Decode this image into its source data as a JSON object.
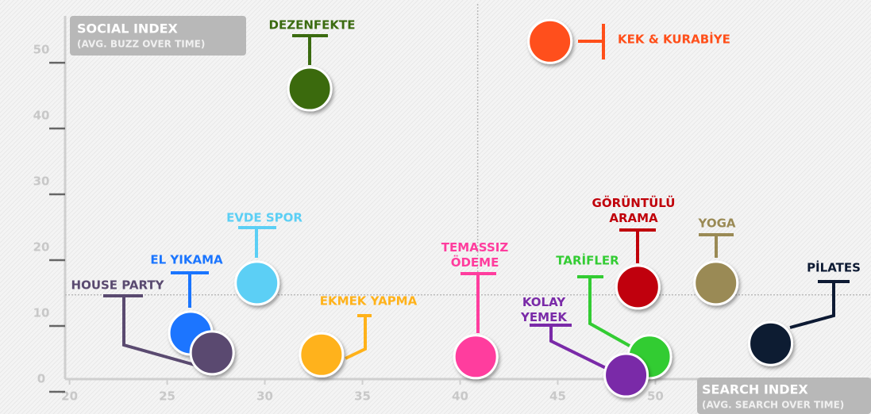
{
  "chart_data": {
    "type": "scatter",
    "y_label": "SOCIAL INDEX",
    "y_sublabel": "(AVG. BUZZ OVER TIME)",
    "x_label": "SEARCH INDEX",
    "x_sublabel": "(AVG. SEARCH OVER TIME)",
    "xlim": [
      19,
      61
    ],
    "ylim": [
      -5.3,
      57.6
    ],
    "xticks": [
      20,
      25,
      30,
      35,
      40,
      45,
      50
    ],
    "yticks": [
      0,
      10,
      20,
      30,
      40,
      50
    ],
    "reference_lines": {
      "x": 40.9,
      "y": 12.8
    },
    "series": [
      {
        "name": "DEZENFEKTE",
        "color": "#3b6b10",
        "x": [
          32.3
        ],
        "values": [
          44.1
        ]
      },
      {
        "name": "KEK & KURABİYE",
        "color": "#ff4f1a",
        "x": [
          44.6
        ],
        "values": [
          51.3
        ]
      },
      {
        "name": "EVDE SPOR",
        "color": "#5bcff5",
        "x": [
          29.6
        ],
        "values": [
          14.6
        ]
      },
      {
        "name": "EL YIKAMA",
        "color": "#1a75ff",
        "x": [
          26.2
        ],
        "values": [
          7.0
        ]
      },
      {
        "name": "HOUSE PARTY",
        "color": "#5a4a70",
        "x": [
          27.3
        ],
        "values": [
          4.0
        ]
      },
      {
        "name": "EKMEK YAPMA",
        "color": "#ffb21a",
        "x": [
          32.9
        ],
        "values": [
          3.7
        ]
      },
      {
        "name": "TEMASSIZ ÖDEME",
        "color": "#ff3d9e",
        "x": [
          40.8
        ],
        "values": [
          3.4
        ]
      },
      {
        "name": "GÖRÜNTÜLÜ ARAMA",
        "color": "#c0000a",
        "x": [
          49.1
        ],
        "values": [
          14.0
        ]
      },
      {
        "name": "YOGA",
        "color": "#9a8a55",
        "x": [
          53.1
        ],
        "values": [
          14.6
        ]
      },
      {
        "name": "TARİFLER",
        "color": "#33cc33",
        "x": [
          49.7
        ],
        "values": [
          3.4
        ]
      },
      {
        "name": "KOLAY YEMEK",
        "color": "#7a2aa8",
        "x": [
          48.5
        ],
        "values": [
          0.6
        ]
      },
      {
        "name": "PİLATES",
        "color": "#0d1a33",
        "x": [
          55.9
        ],
        "values": [
          5.4
        ]
      }
    ]
  }
}
